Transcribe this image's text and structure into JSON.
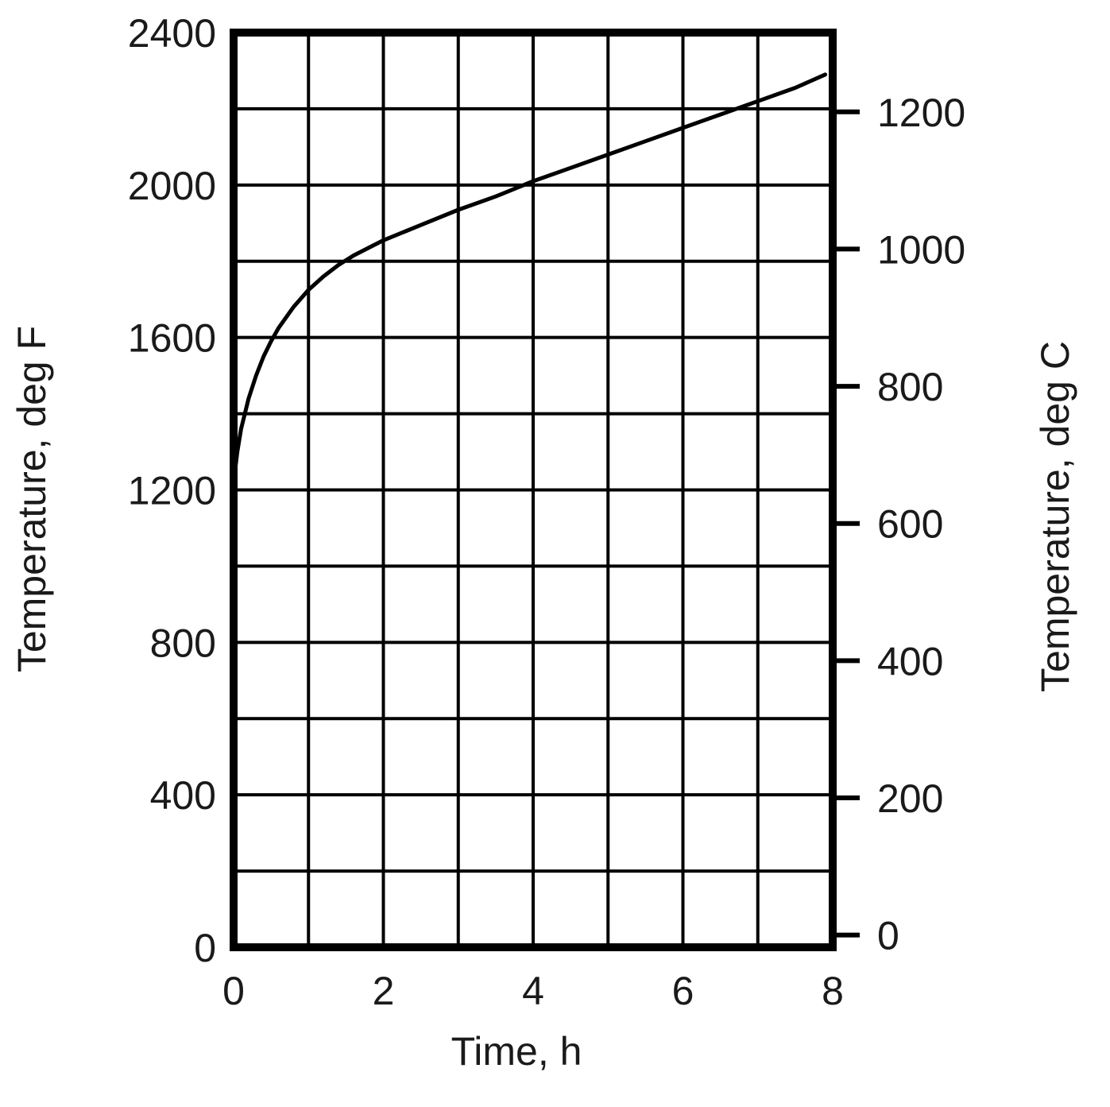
{
  "chart_data": {
    "type": "line",
    "title": "",
    "xlabel": "Time, h",
    "ylabel": "Temperature, deg F",
    "y2label": "Temperature, deg C",
    "xlim": [
      0,
      8
    ],
    "ylim": [
      0,
      2400
    ],
    "y2lim": [
      -17.8,
      1315.6
    ],
    "grid": true,
    "x_ticks": [
      0,
      2,
      4,
      6,
      8
    ],
    "x_tick_labels": [
      "0",
      "2",
      "4",
      "6",
      "8"
    ],
    "y_ticks": [
      0,
      400,
      800,
      1200,
      1600,
      2000,
      2400
    ],
    "y_tick_labels": [
      "0",
      "400",
      "800",
      "1200",
      "1600",
      "2000",
      "2400"
    ],
    "y2_ticks": [
      0,
      200,
      400,
      600,
      800,
      1000,
      1200
    ],
    "y2_tick_labels": [
      "0",
      "200",
      "400",
      "600",
      "800",
      "1000",
      "1200"
    ],
    "grid_x_step": 1,
    "grid_y_step": 200,
    "series": [
      {
        "color": "#000000",
        "x": [
          0.0,
          0.05,
          0.1,
          0.2,
          0.3,
          0.4,
          0.5,
          0.6,
          0.8,
          1.0,
          1.2,
          1.4,
          1.6,
          1.8,
          2.0,
          2.5,
          3.0,
          3.5,
          4.0,
          4.5,
          5.0,
          5.5,
          6.0,
          6.5,
          7.0,
          7.5,
          7.9
        ],
        "y": [
          1220,
          1300,
          1360,
          1440,
          1500,
          1550,
          1590,
          1625,
          1680,
          1725,
          1760,
          1790,
          1815,
          1835,
          1855,
          1895,
          1935,
          1970,
          2010,
          2045,
          2080,
          2115,
          2150,
          2185,
          2220,
          2255,
          2290
        ]
      }
    ]
  }
}
